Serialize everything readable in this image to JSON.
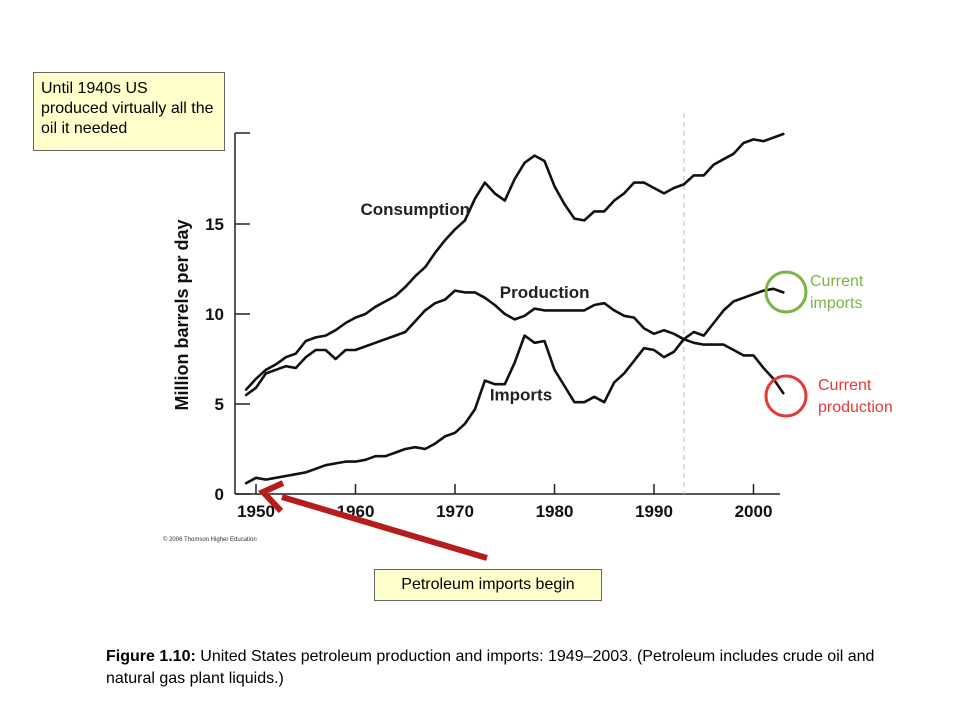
{
  "notes": {
    "top": "Until 1940s US produced virtually all the oil it needed",
    "bottom": "Petroleum imports begin"
  },
  "side_labels": {
    "imports": [
      "Current",
      "imports"
    ],
    "production": [
      "Current",
      "production"
    ]
  },
  "caption": {
    "bold": "Figure 1.10:",
    "text": " United States petroleum production and imports: 1949–2003. (Petroleum includes crude oil and natural gas plant liquids.)"
  },
  "copyright": "© 2006 Thomson Higher Education",
  "colors": {
    "imports_circle": "#7cb342",
    "production_circle": "#e53935",
    "production_label": "#e53935",
    "imports_label": "#7cb342",
    "arrow": "#b71c1c",
    "dashed_line": "#9fd3d3"
  },
  "chart_data": {
    "type": "line",
    "title": "",
    "xlabel": "",
    "ylabel": "Million barrels per day",
    "xlim": [
      1949,
      2003
    ],
    "ylim": [
      0,
      20
    ],
    "x_ticks": [
      1950,
      1960,
      1970,
      1980,
      1990,
      2000
    ],
    "y_ticks": [
      0,
      5,
      10,
      15
    ],
    "vertical_marker_year": 1993,
    "series": [
      {
        "name": "Consumption",
        "label_at": [
          1960.5,
          15.5
        ],
        "points": [
          [
            1949,
            5.8
          ],
          [
            1950,
            6.4
          ],
          [
            1951,
            6.9
          ],
          [
            1952,
            7.2
          ],
          [
            1953,
            7.6
          ],
          [
            1954,
            7.8
          ],
          [
            1955,
            8.5
          ],
          [
            1956,
            8.7
          ],
          [
            1957,
            8.8
          ],
          [
            1958,
            9.1
          ],
          [
            1959,
            9.5
          ],
          [
            1960,
            9.8
          ],
          [
            1961,
            10.0
          ],
          [
            1962,
            10.4
          ],
          [
            1963,
            10.7
          ],
          [
            1964,
            11.0
          ],
          [
            1965,
            11.5
          ],
          [
            1966,
            12.1
          ],
          [
            1967,
            12.6
          ],
          [
            1968,
            13.4
          ],
          [
            1969,
            14.1
          ],
          [
            1970,
            14.7
          ],
          [
            1971,
            15.2
          ],
          [
            1972,
            16.4
          ],
          [
            1973,
            17.3
          ],
          [
            1974,
            16.7
          ],
          [
            1975,
            16.3
          ],
          [
            1976,
            17.5
          ],
          [
            1977,
            18.4
          ],
          [
            1978,
            18.8
          ],
          [
            1979,
            18.5
          ],
          [
            1980,
            17.1
          ],
          [
            1981,
            16.1
          ],
          [
            1982,
            15.3
          ],
          [
            1983,
            15.2
          ],
          [
            1984,
            15.7
          ],
          [
            1985,
            15.7
          ],
          [
            1986,
            16.3
          ],
          [
            1987,
            16.7
          ],
          [
            1988,
            17.3
          ],
          [
            1989,
            17.3
          ],
          [
            1990,
            17.0
          ],
          [
            1991,
            16.7
          ],
          [
            1992,
            17.0
          ],
          [
            1993,
            17.2
          ],
          [
            1994,
            17.7
          ],
          [
            1995,
            17.7
          ],
          [
            1996,
            18.3
          ],
          [
            1997,
            18.6
          ],
          [
            1998,
            18.9
          ],
          [
            1999,
            19.5
          ],
          [
            2000,
            19.7
          ],
          [
            2001,
            19.6
          ],
          [
            2002,
            19.8
          ],
          [
            2003,
            20.0
          ]
        ]
      },
      {
        "name": "Production",
        "label_at": [
          1974.5,
          10.9
        ],
        "points": [
          [
            1949,
            5.5
          ],
          [
            1950,
            5.9
          ],
          [
            1951,
            6.7
          ],
          [
            1952,
            6.9
          ],
          [
            1953,
            7.1
          ],
          [
            1954,
            7.0
          ],
          [
            1955,
            7.6
          ],
          [
            1956,
            8.0
          ],
          [
            1957,
            8.0
          ],
          [
            1958,
            7.5
          ],
          [
            1959,
            8.0
          ],
          [
            1960,
            8.0
          ],
          [
            1961,
            8.2
          ],
          [
            1962,
            8.4
          ],
          [
            1963,
            8.6
          ],
          [
            1964,
            8.8
          ],
          [
            1965,
            9.0
          ],
          [
            1966,
            9.6
          ],
          [
            1967,
            10.2
          ],
          [
            1968,
            10.6
          ],
          [
            1969,
            10.8
          ],
          [
            1970,
            11.3
          ],
          [
            1971,
            11.2
          ],
          [
            1972,
            11.2
          ],
          [
            1973,
            10.9
          ],
          [
            1974,
            10.5
          ],
          [
            1975,
            10.0
          ],
          [
            1976,
            9.7
          ],
          [
            1977,
            9.9
          ],
          [
            1978,
            10.3
          ],
          [
            1979,
            10.2
          ],
          [
            1980,
            10.2
          ],
          [
            1981,
            10.2
          ],
          [
            1982,
            10.2
          ],
          [
            1983,
            10.2
          ],
          [
            1984,
            10.5
          ],
          [
            1985,
            10.6
          ],
          [
            1986,
            10.2
          ],
          [
            1987,
            9.9
          ],
          [
            1988,
            9.8
          ],
          [
            1989,
            9.2
          ],
          [
            1990,
            8.9
          ],
          [
            1991,
            9.1
          ],
          [
            1992,
            8.9
          ],
          [
            1993,
            8.6
          ],
          [
            1994,
            8.4
          ],
          [
            1995,
            8.3
          ],
          [
            1996,
            8.3
          ],
          [
            1997,
            8.3
          ],
          [
            1998,
            8.0
          ],
          [
            1999,
            7.7
          ],
          [
            2000,
            7.7
          ],
          [
            2001,
            7.0
          ],
          [
            2002,
            6.4
          ],
          [
            2003,
            5.6
          ]
        ]
      },
      {
        "name": "Imports",
        "label_at": [
          1973.5,
          5.2
        ],
        "points": [
          [
            1949,
            0.6
          ],
          [
            1950,
            0.9
          ],
          [
            1951,
            0.8
          ],
          [
            1952,
            0.9
          ],
          [
            1953,
            1.0
          ],
          [
            1954,
            1.1
          ],
          [
            1955,
            1.2
          ],
          [
            1956,
            1.4
          ],
          [
            1957,
            1.6
          ],
          [
            1958,
            1.7
          ],
          [
            1959,
            1.8
          ],
          [
            1960,
            1.8
          ],
          [
            1961,
            1.9
          ],
          [
            1962,
            2.1
          ],
          [
            1963,
            2.1
          ],
          [
            1964,
            2.3
          ],
          [
            1965,
            2.5
          ],
          [
            1966,
            2.6
          ],
          [
            1967,
            2.5
          ],
          [
            1968,
            2.8
          ],
          [
            1969,
            3.2
          ],
          [
            1970,
            3.4
          ],
          [
            1971,
            3.9
          ],
          [
            1972,
            4.7
          ],
          [
            1973,
            6.3
          ],
          [
            1974,
            6.1
          ],
          [
            1975,
            6.1
          ],
          [
            1976,
            7.3
          ],
          [
            1977,
            8.8
          ],
          [
            1978,
            8.4
          ],
          [
            1979,
            8.5
          ],
          [
            1980,
            6.9
          ],
          [
            1981,
            6.0
          ],
          [
            1982,
            5.1
          ],
          [
            1983,
            5.1
          ],
          [
            1984,
            5.4
          ],
          [
            1985,
            5.1
          ],
          [
            1986,
            6.2
          ],
          [
            1987,
            6.7
          ],
          [
            1988,
            7.4
          ],
          [
            1989,
            8.1
          ],
          [
            1990,
            8.0
          ],
          [
            1991,
            7.6
          ],
          [
            1992,
            7.9
          ],
          [
            1993,
            8.6
          ],
          [
            1994,
            9.0
          ],
          [
            1995,
            8.8
          ],
          [
            1996,
            9.5
          ],
          [
            1997,
            10.2
          ],
          [
            1998,
            10.7
          ],
          [
            1999,
            10.9
          ],
          [
            2000,
            11.1
          ],
          [
            2001,
            11.3
          ],
          [
            2002,
            11.4
          ],
          [
            2003,
            11.2
          ]
        ]
      }
    ]
  }
}
